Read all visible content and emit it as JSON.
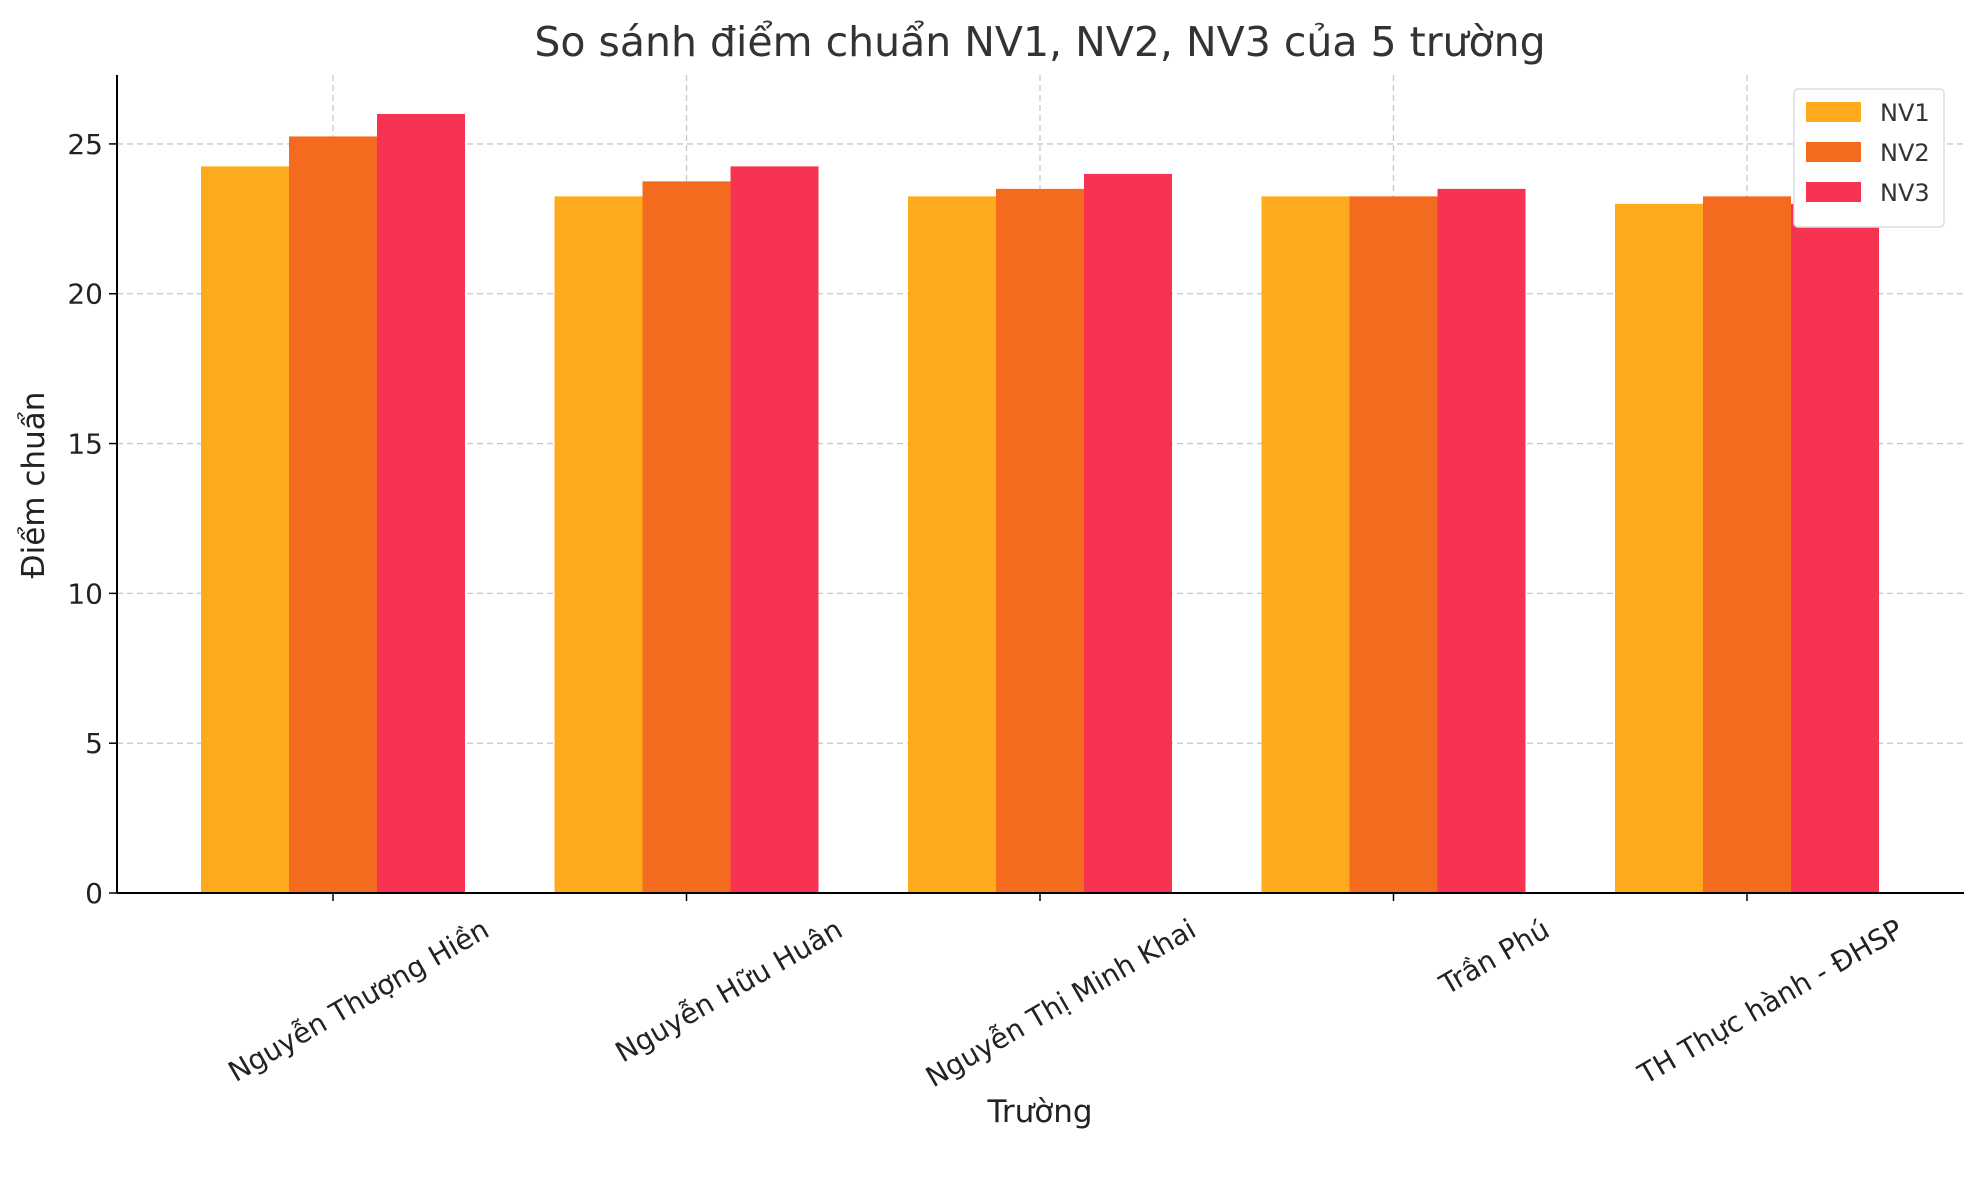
{
  "chart_data": {
    "type": "bar",
    "title": "So sánh điểm chuẩn NV1, NV2, NV3 của 5 trường",
    "xlabel": "Trường",
    "ylabel": "Điểm chuẩn",
    "categories": [
      "Nguyễn Thượng Hiền",
      "Nguyễn Hữu Huân",
      "Nguyễn Thị Minh Khai",
      "Trần Phú",
      "TH Thực hành - ĐHSP"
    ],
    "series": [
      {
        "name": "NV1",
        "color": "#FDAB1C",
        "values": [
          24.25,
          23.25,
          23.25,
          23.25,
          23.0
        ]
      },
      {
        "name": "NV2",
        "color": "#F46A1F",
        "values": [
          25.25,
          23.75,
          23.5,
          23.25,
          23.25
        ]
      },
      {
        "name": "NV3",
        "color": "#F73352",
        "values": [
          26.0,
          24.25,
          24.0,
          23.5,
          23.0
        ]
      }
    ],
    "ylim": [
      0,
      27.3
    ],
    "yticks": [
      0,
      5,
      10,
      15,
      20,
      25
    ],
    "grid": true,
    "legend_position": "top-right"
  }
}
